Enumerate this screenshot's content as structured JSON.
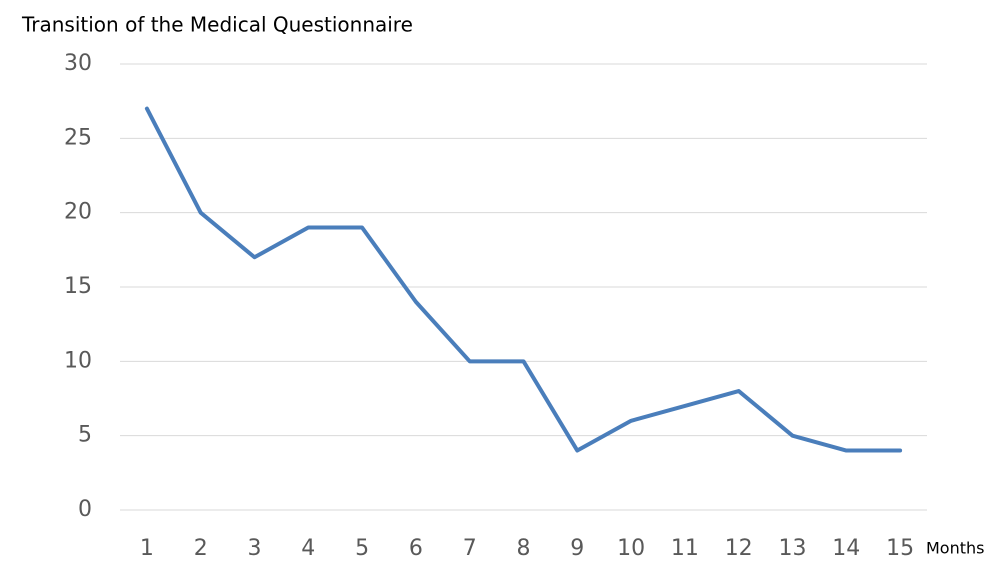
{
  "chart_data": {
    "type": "line",
    "title": "Transition of the Medical Questionnaire",
    "x_label": "Months",
    "categories": [
      "1",
      "2",
      "3",
      "4",
      "5",
      "6",
      "7",
      "8",
      "9",
      "10",
      "11",
      "12",
      "13",
      "14",
      "15"
    ],
    "series": [
      {
        "name": "Medical Questionnaire",
        "color": "#4a7ebb",
        "values": [
          27,
          20,
          17,
          19,
          19,
          14,
          10,
          10,
          4,
          6,
          7,
          8,
          5,
          4,
          4
        ]
      }
    ],
    "ylim": [
      0,
      30
    ],
    "yticks": [
      0,
      5,
      10,
      15,
      20,
      25,
      30
    ],
    "grid": true
  }
}
